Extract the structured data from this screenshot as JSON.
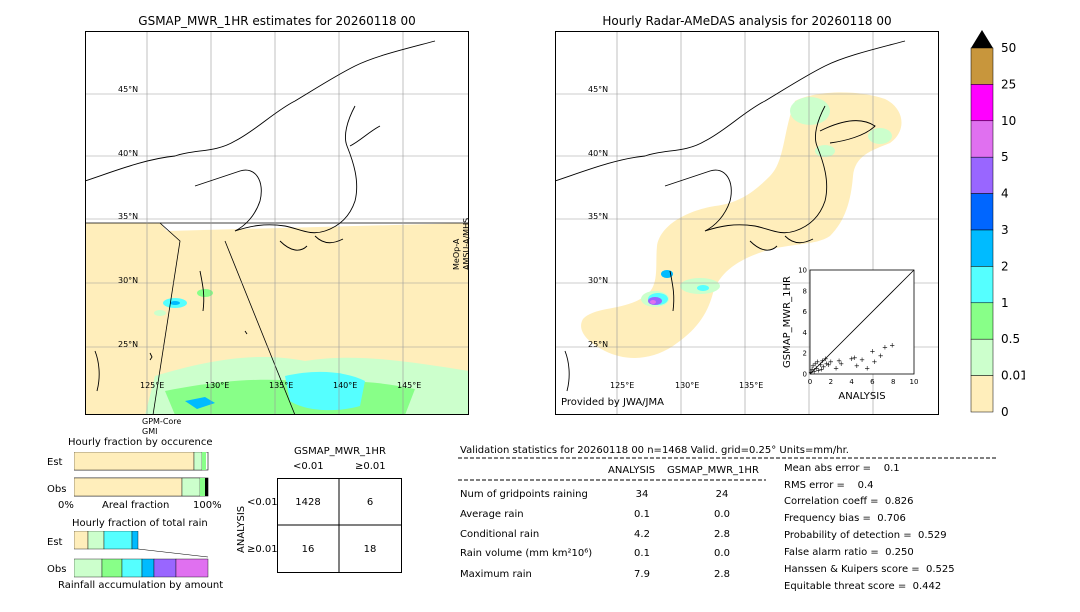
{
  "left_map": {
    "title": "GSMAP_MWR_1HR estimates for 20260118 00",
    "lat_labels": [
      "45°N",
      "40°N",
      "35°N",
      "30°N",
      "25°N"
    ],
    "lon_labels": [
      "125°E",
      "130°E",
      "135°E",
      "140°E",
      "145°E"
    ],
    "swath_label_right": [
      "MeOp-A",
      "AMSU-A/MHS"
    ],
    "swath_label_bottom": [
      "GPM-Core",
      "GMI"
    ]
  },
  "right_map": {
    "title": "Hourly Radar-AMeDAS analysis for 20260118 00",
    "lat_labels": [
      "45°N",
      "40°N",
      "35°N",
      "30°N",
      "25°N"
    ],
    "lon_labels": [
      "125°E",
      "130°E",
      "135°E"
    ],
    "credit": "Provided by JWA/JMA"
  },
  "colorbar": {
    "labels": [
      "50",
      "25",
      "10",
      "5",
      "4",
      "3",
      "2",
      "1",
      "0.5",
      "0.01",
      "0"
    ],
    "colors": [
      "#c8963c",
      "#ff00ff",
      "#e070f0",
      "#9966ff",
      "#0066ff",
      "#00bbff",
      "#55ffff",
      "#88ff88",
      "#ccffcc",
      "#ffeebb"
    ],
    "top_color": "#000000"
  },
  "inset_scatter": {
    "xlabel": "ANALYSIS",
    "ylabel": "GSMAP_MWR_1HR",
    "ticks": [
      "0",
      "2",
      "4",
      "6",
      "8",
      "10"
    ]
  },
  "fraction_occurrence": {
    "title": "Hourly fraction by occurence",
    "rows": [
      "Est",
      "Obs"
    ],
    "axis": [
      "0%",
      "Areal fraction",
      "100%"
    ]
  },
  "fraction_total": {
    "title": "Hourly fraction of total rain",
    "rows": [
      "Est",
      "Obs"
    ],
    "footer": "Rainfall accumulation by amount"
  },
  "contingency": {
    "title": "GSMAP_MWR_1HR",
    "col_headers": [
      "<0.01",
      "≥0.01"
    ],
    "row_label": "ANALYSIS",
    "row_headers": [
      "<0.01",
      "≥0.01"
    ],
    "cells": [
      [
        "1428",
        "6"
      ],
      [
        "16",
        "18"
      ]
    ]
  },
  "validation": {
    "header": "Validation statistics for 20260118 00  n=1468 Valid. grid=0.25° Units=mm/hr.",
    "col_headers": [
      "ANALYSIS",
      "GSMAP_MWR_1HR"
    ],
    "rows": [
      {
        "label": "Num of gridpoints raining",
        "a": "34",
        "b": "24"
      },
      {
        "label": "Average rain",
        "a": "0.1",
        "b": "0.0"
      },
      {
        "label": "Conditional rain",
        "a": "4.2",
        "b": "2.8"
      },
      {
        "label": "Rain volume (mm km²10⁶)",
        "a": "0.1",
        "b": "0.0"
      },
      {
        "label": "Maximum rain",
        "a": "7.9",
        "b": "2.8"
      }
    ],
    "scores": [
      "Mean abs error =    0.1",
      "RMS error =    0.4",
      "Correlation coeff =  0.826",
      "Frequency bias =  0.706",
      "Probability of detection =  0.529",
      "False alarm ratio =  0.250",
      "Hanssen & Kuipers score =  0.525",
      "Equitable threat score =  0.442"
    ]
  },
  "chart_data": {
    "type": "scatter",
    "xlabel": "ANALYSIS",
    "ylabel": "GSMAP_MWR_1HR",
    "xlim": [
      0,
      10
    ],
    "ylim": [
      0,
      10
    ],
    "points": [
      [
        0.1,
        0.2
      ],
      [
        0.2,
        0.5
      ],
      [
        0.3,
        0.8
      ],
      [
        0.4,
        0.3
      ],
      [
        0.5,
        1.0
      ],
      [
        0.6,
        0.6
      ],
      [
        0.7,
        1.2
      ],
      [
        0.8,
        0.4
      ],
      [
        1.0,
        0.9
      ],
      [
        1.1,
        0.5
      ],
      [
        1.2,
        1.3
      ],
      [
        1.3,
        0.7
      ],
      [
        1.5,
        1.5
      ],
      [
        1.6,
        1.0
      ],
      [
        1.8,
        0.9
      ],
      [
        2.0,
        1.2
      ],
      [
        2.5,
        0.6
      ],
      [
        2.8,
        1.3
      ],
      [
        3.0,
        1.0
      ],
      [
        4.0,
        1.5
      ],
      [
        4.3,
        1.6
      ],
      [
        4.5,
        0.8
      ],
      [
        5.0,
        1.4
      ],
      [
        5.5,
        0.6
      ],
      [
        6.0,
        2.2
      ],
      [
        6.2,
        1.2
      ],
      [
        6.8,
        1.8
      ],
      [
        7.2,
        2.6
      ],
      [
        7.9,
        2.8
      ]
    ]
  }
}
